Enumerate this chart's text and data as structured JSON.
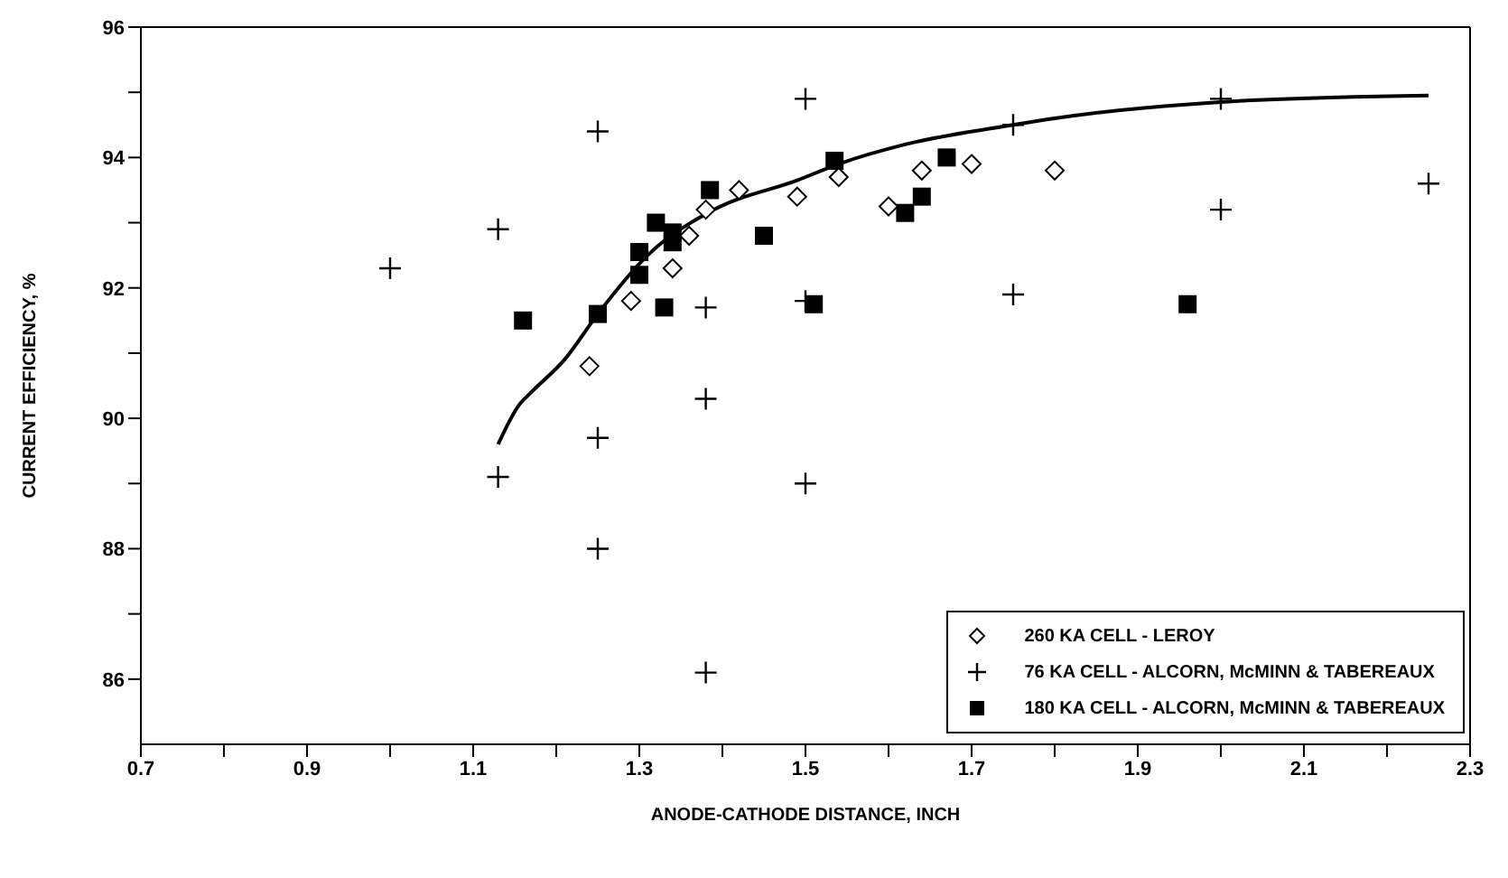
{
  "chart_data": {
    "type": "scatter",
    "xlabel": "ANODE-CATHODE DISTANCE, INCH",
    "ylabel": "CURRENT EFFICIENCY, %",
    "xlim": [
      0.7,
      2.3
    ],
    "ylim": [
      85,
      96
    ],
    "xticks": [
      0.7,
      {
        "value": 0.8,
        "label": null
      },
      0.9,
      {
        "value": 1.0,
        "label": null
      },
      1.1,
      {
        "value": 1.2,
        "label": null
      },
      1.3,
      {
        "value": 1.4,
        "label": null
      },
      1.5,
      {
        "value": 1.6,
        "label": null
      },
      1.7,
      {
        "value": 1.8,
        "label": null
      },
      1.9,
      {
        "value": 2.0,
        "label": null
      },
      2.1,
      {
        "value": 2.2,
        "label": null
      },
      2.3
    ],
    "yticks": [
      86,
      {
        "value": 87,
        "label": null
      },
      88,
      {
        "value": 89,
        "label": null
      },
      90,
      {
        "value": 91,
        "label": null
      },
      92,
      {
        "value": 93,
        "label": null
      },
      94,
      {
        "value": 95,
        "label": null
      },
      96
    ],
    "legend": "bottom right",
    "series": [
      {
        "name": "260 KA CELL - LEROY",
        "color": "#000000",
        "marker": "diamond",
        "x": [
          1.24,
          1.29,
          1.34,
          1.36,
          1.38,
          1.42,
          1.49,
          1.54,
          1.6,
          1.64,
          1.7,
          1.8
        ],
        "values": [
          90.8,
          91.8,
          92.3,
          92.8,
          93.2,
          93.5,
          93.4,
          93.7,
          93.25,
          93.8,
          93.9,
          93.8
        ]
      },
      {
        "name": "76 KA CELL - ALCORN, McMINN & TABEREAUX",
        "color": "#000000",
        "marker": "cross",
        "x": [
          1.0,
          1.13,
          1.25,
          1.38,
          1.5,
          1.5,
          1.75,
          1.75,
          2.0,
          2.0,
          2.25,
          1.38,
          1.25,
          1.13,
          1.25,
          1.38,
          1.5
        ],
        "values": [
          92.3,
          92.9,
          94.4,
          91.7,
          94.9,
          91.8,
          94.5,
          91.9,
          94.9,
          93.2,
          93.6,
          90.3,
          89.7,
          89.1,
          88.0,
          86.1,
          89.0
        ]
      },
      {
        "name": "180 KA CELL - ALCORN, McMINN & TABEREAUX",
        "color": "#000000",
        "marker": "square",
        "x": [
          1.16,
          1.25,
          1.3,
          1.3,
          1.32,
          1.34,
          1.34,
          1.33,
          1.385,
          1.45,
          1.535,
          1.51,
          1.62,
          1.64,
          1.67,
          1.96
        ],
        "values": [
          91.5,
          91.6,
          92.2,
          92.55,
          93.0,
          92.85,
          92.7,
          91.7,
          93.5,
          92.8,
          93.95,
          91.75,
          93.15,
          93.4,
          94.0,
          91.75
        ]
      },
      {
        "type": "line",
        "color": "#000000",
        "marker": "none",
        "line_style": "solid",
        "x": [
          1.13,
          1.155,
          1.17,
          1.21,
          1.25,
          1.31,
          1.39,
          1.49,
          1.54,
          1.62,
          1.75,
          1.8,
          2.0,
          2.25
        ],
        "values": [
          89.6,
          90.2,
          90.4,
          90.9,
          91.6,
          92.5,
          93.2,
          93.65,
          93.9,
          94.2,
          94.5,
          94.6,
          94.85,
          94.95
        ]
      }
    ]
  }
}
